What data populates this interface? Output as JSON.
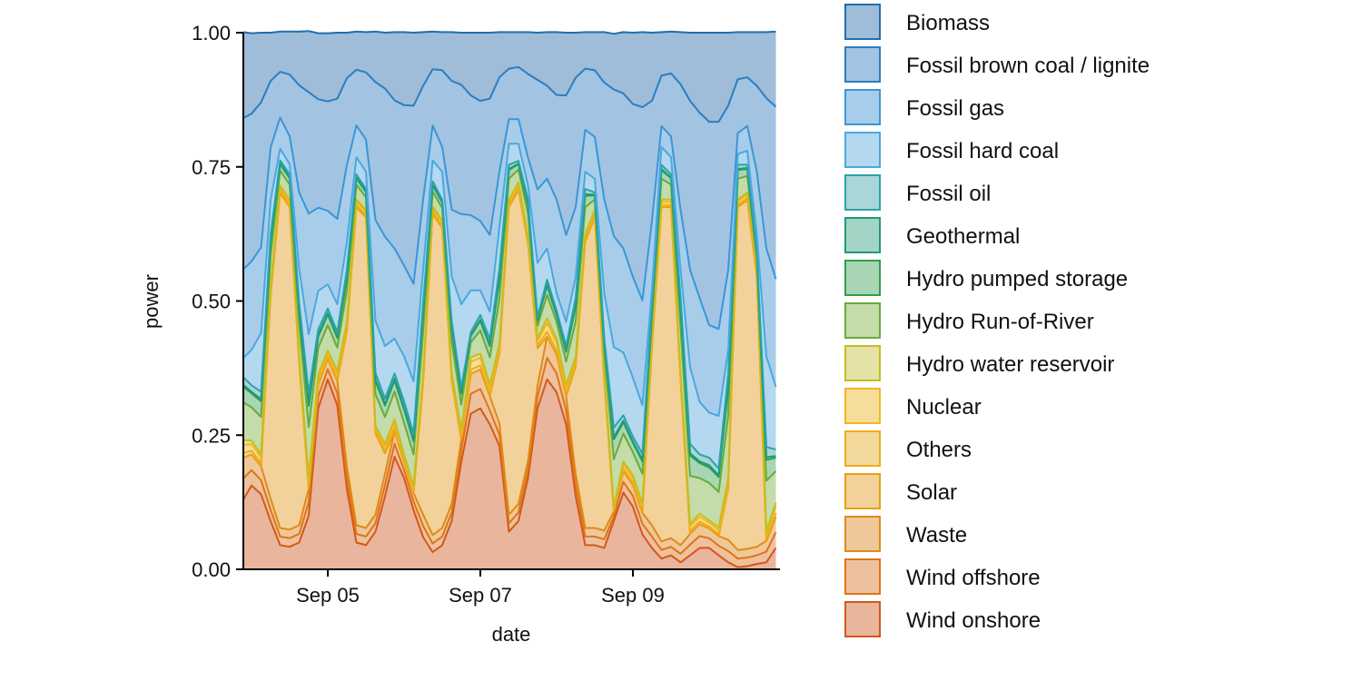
{
  "chart_data": {
    "type": "area",
    "stacked": true,
    "xlabel": "date",
    "ylabel": "power",
    "ylim": [
      0,
      1
    ],
    "yticks": [
      "0.00",
      "0.25",
      "0.50",
      "0.75",
      "1.00"
    ],
    "xticks": [
      {
        "label": "Sep 05",
        "date": "09-05T00:00"
      },
      {
        "label": "Sep 07",
        "date": "09-07T00:00"
      },
      {
        "label": "Sep 09",
        "date": "09-09T00:00"
      }
    ],
    "grid": false,
    "legend_position": "right",
    "x": [
      "09-03T21:00",
      "09-04T00:00",
      "09-04T03:00",
      "09-04T06:00",
      "09-04T09:00",
      "09-04T12:00",
      "09-04T15:00",
      "09-04T18:00",
      "09-04T21:00",
      "09-05T00:00",
      "09-05T03:00",
      "09-05T06:00",
      "09-05T09:00",
      "09-05T12:00",
      "09-05T15:00",
      "09-05T18:00",
      "09-05T21:00",
      "09-06T00:00",
      "09-06T03:00",
      "09-06T06:00",
      "09-06T09:00",
      "09-06T12:00",
      "09-06T15:00",
      "09-06T18:00",
      "09-06T21:00",
      "09-07T00:00",
      "09-07T03:00",
      "09-07T06:00",
      "09-07T09:00",
      "09-07T12:00",
      "09-07T15:00",
      "09-07T18:00",
      "09-07T21:00",
      "09-08T00:00",
      "09-08T03:00",
      "09-08T06:00",
      "09-08T09:00",
      "09-08T12:00",
      "09-08T15:00",
      "09-08T18:00",
      "09-08T21:00",
      "09-09T00:00",
      "09-09T03:00",
      "09-09T06:00",
      "09-09T09:00",
      "09-09T12:00",
      "09-09T15:00",
      "09-09T18:00",
      "09-09T21:00",
      "09-10T00:00",
      "09-10T03:00",
      "09-10T06:00",
      "09-10T09:00",
      "09-10T12:00",
      "09-10T15:00",
      "09-10T18:00",
      "09-10T21:00"
    ],
    "series": [
      {
        "name": "Biomass",
        "fill": "#9fbcd8",
        "line": "#1f6fb0",
        "values": [
          0.16,
          0.15,
          0.13,
          0.09,
          0.075,
          0.08,
          0.1,
          0.114,
          0.123,
          0.127,
          0.123,
          0.085,
          0.071,
          0.075,
          0.094,
          0.104,
          0.127,
          0.136,
          0.136,
          0.1,
          0.07,
          0.071,
          0.091,
          0.097,
          0.117,
          0.127,
          0.123,
          0.084,
          0.068,
          0.065,
          0.078,
          0.088,
          0.1,
          0.117,
          0.117,
          0.084,
          0.068,
          0.071,
          0.094,
          0.104,
          0.114,
          0.133,
          0.14,
          0.127,
          0.081,
          0.078,
          0.097,
          0.127,
          0.149,
          0.166,
          0.166,
          0.136,
          0.088,
          0.084,
          0.1,
          0.123,
          0.14
        ]
      },
      {
        "name": "Fossil brown coal / lignite",
        "fill": "#a2c4e2",
        "line": "#2a7fc0",
        "values": [
          0.282,
          0.275,
          0.27,
          0.124,
          0.085,
          0.115,
          0.2,
          0.226,
          0.202,
          0.204,
          0.224,
          0.162,
          0.104,
          0.125,
          0.257,
          0.276,
          0.276,
          0.299,
          0.332,
          0.212,
          0.105,
          0.143,
          0.24,
          0.241,
          0.223,
          0.224,
          0.254,
          0.176,
          0.094,
          0.097,
          0.156,
          0.204,
          0.173,
          0.195,
          0.26,
          0.241,
          0.114,
          0.124,
          0.218,
          0.273,
          0.289,
          0.322,
          0.36,
          0.224,
          0.094,
          0.117,
          0.234,
          0.315,
          0.345,
          0.379,
          0.386,
          0.306,
          0.1,
          0.091,
          0.16,
          0.28,
          0.321
        ]
      },
      {
        "name": "Fossil gas",
        "fill": "#a8cdea",
        "line": "#3a96d6",
        "values": [
          0.165,
          0.165,
          0.16,
          0.098,
          0.058,
          0.052,
          0.142,
          0.225,
          0.155,
          0.137,
          0.159,
          0.143,
          0.059,
          0.06,
          0.188,
          0.204,
          0.168,
          0.169,
          0.182,
          0.13,
          0.065,
          0.046,
          0.124,
          0.168,
          0.14,
          0.129,
          0.143,
          0.104,
          0.046,
          0.046,
          0.052,
          0.137,
          0.13,
          0.175,
          0.162,
          0.13,
          0.078,
          0.078,
          0.175,
          0.207,
          0.194,
          0.188,
          0.195,
          0.129,
          0.039,
          0.039,
          0.111,
          0.181,
          0.194,
          0.163,
          0.162,
          0.149,
          0.039,
          0.046,
          0.117,
          0.201,
          0.201
        ]
      },
      {
        "name": "Fossil hard coal",
        "fill": "#b3d8ef",
        "line": "#4aa8df",
        "values": [
          0.036,
          0.066,
          0.109,
          0.065,
          0.022,
          0.019,
          0.064,
          0.11,
          0.072,
          0.045,
          0.052,
          0.052,
          0.032,
          0.032,
          0.097,
          0.098,
          0.065,
          0.084,
          0.097,
          0.064,
          0.039,
          0.052,
          0.084,
          0.156,
          0.078,
          0.046,
          0.051,
          0.078,
          0.039,
          0.032,
          0.026,
          0.101,
          0.058,
          0.032,
          0.045,
          0.039,
          0.032,
          0.026,
          0.084,
          0.15,
          0.117,
          0.11,
          0.091,
          0.026,
          0.033,
          0.032,
          0.052,
          0.143,
          0.098,
          0.084,
          0.098,
          0.045,
          0.02,
          0.026,
          0.032,
          0.169,
          0.117
        ]
      },
      {
        "name": "Fossil oil",
        "fill": "#a8d6d9",
        "line": "#2aa3a8",
        "values": [
          0.014,
          0.012,
          0.014,
          0.012,
          0.006,
          0.006,
          0.012,
          0.019,
          0.01,
          0.009,
          0.009,
          0.012,
          0.006,
          0.005,
          0.012,
          0.01,
          0.01,
          0.012,
          0.012,
          0.016,
          0.006,
          0.005,
          0.012,
          0.009,
          0.006,
          0.009,
          0.01,
          0.017,
          0.008,
          0.005,
          0.008,
          0.005,
          0.009,
          0.006,
          0.009,
          0.013,
          0.01,
          0.004,
          0.008,
          0.018,
          0.01,
          0.009,
          0.011,
          0.008,
          0.008,
          0.006,
          0.017,
          0.018,
          0.013,
          0.014,
          0.013,
          0.023,
          0.008,
          0.006,
          0.004,
          0.019,
          0.012
        ]
      },
      {
        "name": "Geothermal",
        "fill": "#a3d5c6",
        "line": "#1f9a78",
        "values": [
          0.004,
          0.003,
          0.004,
          0.003,
          0.001,
          0.001,
          0.003,
          0.005,
          0.003,
          0.002,
          0.002,
          0.003,
          0.001,
          0.001,
          0.003,
          0.003,
          0.003,
          0.003,
          0.003,
          0.004,
          0.001,
          0.001,
          0.003,
          0.002,
          0.001,
          0.002,
          0.003,
          0.004,
          0.002,
          0.001,
          0.002,
          0.001,
          0.002,
          0.002,
          0.002,
          0.003,
          0.003,
          0.001,
          0.002,
          0.004,
          0.003,
          0.002,
          0.003,
          0.002,
          0.002,
          0.001,
          0.004,
          0.004,
          0.003,
          0.004,
          0.003,
          0.006,
          0.002,
          0.002,
          0.001,
          0.005,
          0.003
        ]
      },
      {
        "name": "Hydro pumped storage",
        "fill": "#a8d6b5",
        "line": "#2e9e4c",
        "values": [
          0.029,
          0.026,
          0.029,
          0.024,
          0.012,
          0.012,
          0.025,
          0.039,
          0.021,
          0.02,
          0.018,
          0.024,
          0.012,
          0.01,
          0.025,
          0.021,
          0.021,
          0.025,
          0.024,
          0.033,
          0.012,
          0.01,
          0.024,
          0.02,
          0.012,
          0.018,
          0.021,
          0.035,
          0.016,
          0.01,
          0.017,
          0.01,
          0.018,
          0.013,
          0.018,
          0.028,
          0.021,
          0.008,
          0.016,
          0.037,
          0.021,
          0.018,
          0.023,
          0.016,
          0.016,
          0.012,
          0.036,
          0.038,
          0.028,
          0.029,
          0.028,
          0.049,
          0.016,
          0.013,
          0.008,
          0.039,
          0.025
        ]
      },
      {
        "name": "Hydro Run-of-River",
        "fill": "#c4dcaa",
        "line": "#6aaa3a",
        "values": [
          0.07,
          0.062,
          0.07,
          0.058,
          0.028,
          0.028,
          0.059,
          0.093,
          0.05,
          0.047,
          0.043,
          0.058,
          0.028,
          0.023,
          0.059,
          0.05,
          0.051,
          0.059,
          0.058,
          0.078,
          0.028,
          0.023,
          0.058,
          0.047,
          0.028,
          0.043,
          0.051,
          0.083,
          0.039,
          0.024,
          0.041,
          0.024,
          0.043,
          0.031,
          0.043,
          0.066,
          0.051,
          0.019,
          0.039,
          0.089,
          0.052,
          0.043,
          0.055,
          0.038,
          0.039,
          0.028,
          0.085,
          0.09,
          0.066,
          0.07,
          0.066,
          0.117,
          0.039,
          0.031,
          0.02,
          0.094,
          0.059
        ]
      },
      {
        "name": "Hydro water reservoir",
        "fill": "#e4e2a6",
        "line": "#c8bc20",
        "values": [
          0.009,
          0.007,
          0.006,
          0.005,
          0.004,
          0.004,
          0.004,
          0.006,
          0.005,
          0.004,
          0.005,
          0.005,
          0.004,
          0.004,
          0.004,
          0.005,
          0.006,
          0.004,
          0.004,
          0.005,
          0.004,
          0.004,
          0.004,
          0.005,
          0.008,
          0.008,
          0.006,
          0.005,
          0.004,
          0.004,
          0.004,
          0.005,
          0.009,
          0.008,
          0.006,
          0.005,
          0.004,
          0.004,
          0.004,
          0.002,
          0.005,
          0.005,
          0.005,
          0.005,
          0.004,
          0.004,
          0.004,
          0.005,
          0.006,
          0.004,
          0.005,
          0.005,
          0.004,
          0.004,
          0.004,
          0.005,
          0.007
        ]
      },
      {
        "name": "Nuclear",
        "fill": "#f6de9a",
        "line": "#f0b820",
        "values": [
          0.015,
          0.012,
          0.01,
          0.008,
          0.006,
          0.006,
          0.006,
          0.01,
          0.009,
          0.008,
          0.009,
          0.008,
          0.006,
          0.006,
          0.006,
          0.008,
          0.01,
          0.006,
          0.006,
          0.008,
          0.006,
          0.006,
          0.006,
          0.008,
          0.015,
          0.014,
          0.01,
          0.008,
          0.006,
          0.006,
          0.006,
          0.008,
          0.016,
          0.014,
          0.01,
          0.008,
          0.006,
          0.006,
          0.006,
          0.004,
          0.008,
          0.008,
          0.008,
          0.008,
          0.006,
          0.006,
          0.006,
          0.008,
          0.009,
          0.007,
          0.007,
          0.008,
          0.006,
          0.006,
          0.006,
          0.008,
          0.012
        ]
      },
      {
        "name": "Others",
        "fill": "#f3d89c",
        "line": "#eeac1e",
        "values": [
          0.009,
          0.007,
          0.006,
          0.005,
          0.004,
          0.004,
          0.004,
          0.006,
          0.005,
          0.004,
          0.005,
          0.005,
          0.004,
          0.004,
          0.004,
          0.005,
          0.006,
          0.004,
          0.004,
          0.005,
          0.004,
          0.004,
          0.004,
          0.005,
          0.008,
          0.008,
          0.006,
          0.005,
          0.004,
          0.004,
          0.004,
          0.005,
          0.009,
          0.008,
          0.006,
          0.005,
          0.004,
          0.004,
          0.004,
          0.002,
          0.005,
          0.005,
          0.005,
          0.005,
          0.004,
          0.004,
          0.004,
          0.005,
          0.005,
          0.004,
          0.004,
          0.005,
          0.004,
          0.004,
          0.004,
          0.005,
          0.007
        ]
      },
      {
        "name": "Solar",
        "fill": "#f2d29a",
        "line": "#e8a010",
        "values": [
          0,
          0,
          0,
          0.376,
          0.624,
          0.601,
          0.301,
          0,
          0,
          0,
          0,
          0.251,
          0.593,
          0.579,
          0.151,
          0.038,
          0,
          0,
          0,
          0.244,
          0.598,
          0.559,
          0.229,
          0,
          0,
          0,
          0,
          0.13,
          0.573,
          0.585,
          0.405,
          0.07,
          0,
          0,
          0,
          0.2,
          0.533,
          0.579,
          0.279,
          0,
          0,
          0,
          0,
          0.33,
          0.623,
          0.617,
          0.306,
          0,
          0,
          0,
          0,
          0.096,
          0.639,
          0.65,
          0.503,
          0,
          0
        ]
      },
      {
        "name": "Waste",
        "fill": "#efc89a",
        "line": "#e08a16",
        "values": [
          0.039,
          0.029,
          0.026,
          0.021,
          0.016,
          0.016,
          0.016,
          0.025,
          0.022,
          0.019,
          0.023,
          0.021,
          0.016,
          0.016,
          0.016,
          0.021,
          0.024,
          0.015,
          0.016,
          0.021,
          0.016,
          0.016,
          0.016,
          0.021,
          0.037,
          0.036,
          0.026,
          0.021,
          0.016,
          0.016,
          0.016,
          0.021,
          0.04,
          0.035,
          0.026,
          0.021,
          0.016,
          0.016,
          0.016,
          0.009,
          0.02,
          0.02,
          0.02,
          0.021,
          0.016,
          0.016,
          0.016,
          0.02,
          0.022,
          0.018,
          0.018,
          0.021,
          0.016,
          0.016,
          0.016,
          0.02,
          0.029
        ]
      },
      {
        "name": "Wind offshore",
        "fill": "#eec19e",
        "line": "#de7418",
        "values": [
          0.039,
          0.029,
          0.026,
          0.021,
          0.016,
          0.016,
          0.016,
          0.025,
          0.022,
          0.019,
          0.023,
          0.021,
          0.016,
          0.016,
          0.016,
          0.021,
          0.024,
          0.015,
          0.016,
          0.021,
          0.016,
          0.016,
          0.016,
          0.021,
          0.037,
          0.036,
          0.026,
          0.021,
          0.016,
          0.016,
          0.016,
          0.021,
          0.04,
          0.035,
          0.026,
          0.021,
          0.016,
          0.016,
          0.016,
          0.009,
          0.02,
          0.02,
          0.02,
          0.021,
          0.016,
          0.016,
          0.016,
          0.02,
          0.022,
          0.018,
          0.018,
          0.021,
          0.016,
          0.016,
          0.016,
          0.02,
          0.029
        ]
      },
      {
        "name": "Wind onshore",
        "fill": "#e9b59d",
        "line": "#d2581a",
        "values": [
          0.13,
          0.156,
          0.14,
          0.09,
          0.045,
          0.042,
          0.05,
          0.1,
          0.3,
          0.354,
          0.305,
          0.15,
          0.05,
          0.045,
          0.07,
          0.136,
          0.21,
          0.17,
          0.11,
          0.06,
          0.032,
          0.045,
          0.09,
          0.2,
          0.29,
          0.3,
          0.27,
          0.23,
          0.07,
          0.09,
          0.17,
          0.3,
          0.354,
          0.33,
          0.27,
          0.136,
          0.045,
          0.045,
          0.04,
          0.09,
          0.143,
          0.117,
          0.065,
          0.04,
          0.02,
          0.026,
          0.013,
          0.026,
          0.04,
          0.04,
          0.026,
          0.013,
          0.004,
          0.006,
          0.01,
          0.013,
          0.04
        ]
      }
    ]
  }
}
